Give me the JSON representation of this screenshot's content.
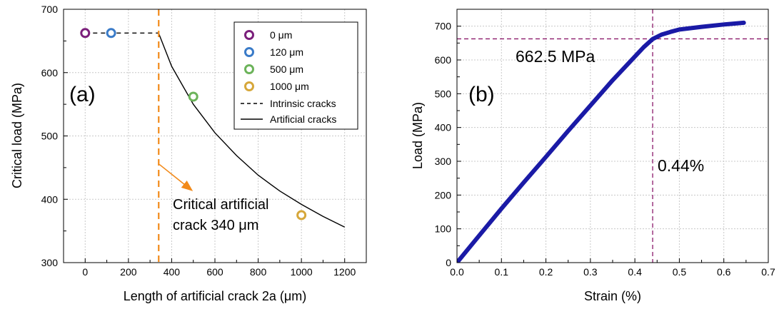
{
  "chart_data": [
    {
      "type": "scatter",
      "panel_label": "(a)",
      "xlabel": "Length of artificial crack 2a (μm)",
      "ylabel": "Critical load (MPa)",
      "xlim": [
        -100,
        1300
      ],
      "ylim": [
        300,
        700
      ],
      "xticks": [
        0,
        200,
        400,
        600,
        800,
        1000,
        1200
      ],
      "yticks": [
        300,
        400,
        500,
        600,
        700
      ],
      "grid": true,
      "legend_position": "top-right",
      "points": [
        {
          "name": "0 μm",
          "x": 0,
          "y": 662.5,
          "color": "#7b1f7b"
        },
        {
          "name": "120 μm",
          "x": 120,
          "y": 662.5,
          "color": "#3a7bc8"
        },
        {
          "name": "500 μm",
          "x": 500,
          "y": 562,
          "color": "#6cb35a"
        },
        {
          "name": "1000 μm",
          "x": 1000,
          "y": 375,
          "color": "#d6a73a"
        }
      ],
      "lines": [
        {
          "name": "Intrinsic cracks",
          "style": "dashed",
          "x": [
            0,
            340
          ],
          "y": [
            662.5,
            662.5
          ]
        },
        {
          "name": "Artificial cracks",
          "style": "solid",
          "x": [
            340,
            400,
            500,
            600,
            700,
            800,
            900,
            1000,
            1100,
            1200
          ],
          "y": [
            662,
            610,
            550,
            505,
            469,
            438,
            413,
            392,
            373,
            356
          ]
        }
      ],
      "critical_line": {
        "x": 340,
        "color": "#f28a1a"
      },
      "annotation": {
        "line1": "Critical artificial",
        "line2": "crack 340 μm",
        "arrow_color": "#f28a1a"
      }
    },
    {
      "type": "line",
      "panel_label": "(b)",
      "xlabel": "Strain (%)",
      "ylabel": "Load (MPa)",
      "xlim": [
        0.0,
        0.7
      ],
      "ylim": [
        0,
        750
      ],
      "xticks": [
        "0.0",
        "0.1",
        "0.2",
        "0.3",
        "0.4",
        "0.5",
        "0.6",
        "0.7"
      ],
      "yticks": [
        0,
        100,
        200,
        300,
        400,
        500,
        600,
        700
      ],
      "grid": true,
      "series": [
        {
          "color": "#1a1aa6",
          "x": [
            0,
            0.05,
            0.1,
            0.15,
            0.2,
            0.25,
            0.3,
            0.35,
            0.4,
            0.42,
            0.44,
            0.46,
            0.48,
            0.5,
            0.55,
            0.6,
            0.645
          ],
          "y": [
            0,
            80,
            160,
            237,
            313,
            390,
            465,
            540,
            610,
            638,
            662,
            675,
            683,
            690,
            698,
            705,
            710
          ]
        }
      ],
      "reference": {
        "x": 0.44,
        "y": 662.5,
        "color": "#8b1a6b"
      },
      "annotations": {
        "load_label": "662.5 MPa",
        "strain_label": "0.44%"
      }
    }
  ]
}
